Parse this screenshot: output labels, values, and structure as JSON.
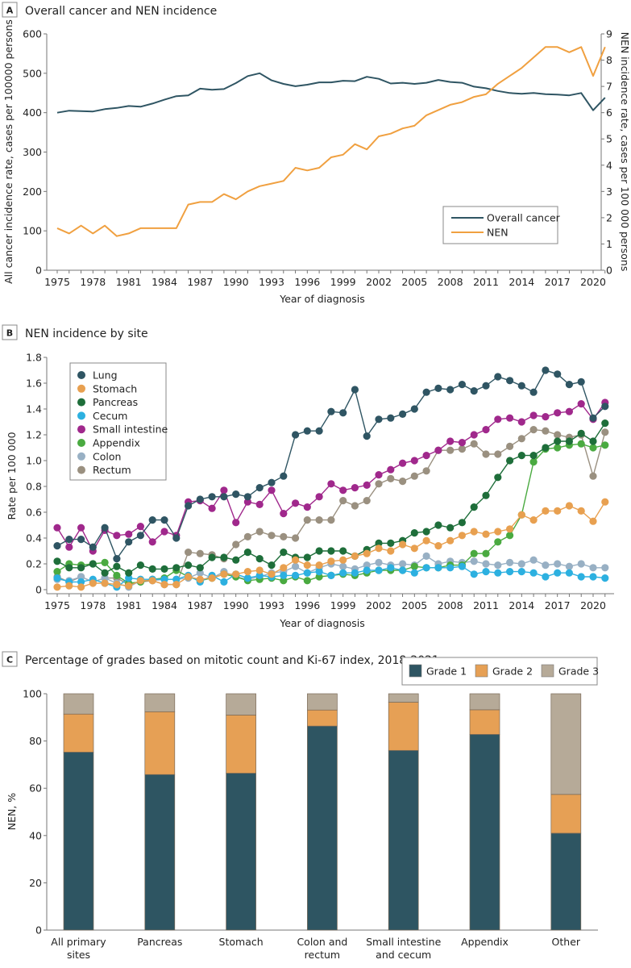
{
  "chart_data": [
    {
      "panel": "A",
      "type": "line",
      "title": "Overall cancer and NEN incidence",
      "xlabel": "Year of diagnosis",
      "ylabel": "All cancer incidence rate, cases per 100000 persons",
      "y2label": "NEN incidence rate, cases per 100 000 persons",
      "xlim": [
        1975,
        2021
      ],
      "ylim": [
        0,
        600
      ],
      "y2lim": [
        0,
        9
      ],
      "x_ticks": [
        "1975",
        "1978",
        "1981",
        "1984",
        "1987",
        "1990",
        "1993",
        "1996",
        "1999",
        "2002",
        "2005",
        "2008",
        "2011",
        "2014",
        "2017",
        "2020"
      ],
      "y_ticks": [
        "0",
        "100",
        "200",
        "300",
        "400",
        "500",
        "600"
      ],
      "y2_ticks": [
        "0",
        "1",
        "2",
        "3",
        "4",
        "5",
        "6",
        "7",
        "8",
        "9"
      ],
      "legend_position": "bottom-right",
      "x": [
        1975,
        1976,
        1977,
        1978,
        1979,
        1980,
        1981,
        1982,
        1983,
        1984,
        1985,
        1986,
        1987,
        1988,
        1989,
        1990,
        1991,
        1992,
        1993,
        1994,
        1995,
        1996,
        1997,
        1998,
        1999,
        2000,
        2001,
        2002,
        2003,
        2004,
        2005,
        2006,
        2007,
        2008,
        2009,
        2010,
        2011,
        2012,
        2013,
        2014,
        2015,
        2016,
        2017,
        2018,
        2019,
        2020,
        2021
      ],
      "series": [
        {
          "name": "Overall cancer",
          "axis": "left",
          "color": "#2f5563",
          "values": [
            400,
            405,
            404,
            403,
            409,
            412,
            417,
            415,
            423,
            433,
            442,
            444,
            461,
            458,
            460,
            475,
            493,
            500,
            482,
            473,
            467,
            471,
            477,
            477,
            481,
            480,
            491,
            486,
            474,
            476,
            473,
            476,
            483,
            478,
            476,
            466,
            462,
            455,
            450,
            448,
            450,
            447,
            446,
            444,
            450,
            406,
            438
          ]
        },
        {
          "name": "NEN",
          "axis": "right",
          "color": "#f0a040",
          "values": [
            1.6,
            1.4,
            1.7,
            1.4,
            1.7,
            1.3,
            1.4,
            1.6,
            1.6,
            1.6,
            1.6,
            2.5,
            2.6,
            2.6,
            2.9,
            2.7,
            3.0,
            3.2,
            3.3,
            3.4,
            3.9,
            3.8,
            3.9,
            4.3,
            4.4,
            4.8,
            4.6,
            5.1,
            5.2,
            5.4,
            5.5,
            5.9,
            6.1,
            6.3,
            6.4,
            6.6,
            6.7,
            7.1,
            7.4,
            7.7,
            8.1,
            8.5,
            8.5,
            8.3,
            8.5,
            7.4,
            8.5
          ]
        }
      ]
    },
    {
      "panel": "B",
      "type": "line",
      "title": "NEN incidence by site",
      "xlabel": "Year of diagnosis",
      "ylabel": "Rate per 100 000",
      "xlim": [
        1975,
        2021
      ],
      "ylim": [
        0,
        1.8
      ],
      "x_ticks": [
        "1975",
        "1978",
        "1981",
        "1984",
        "1987",
        "1990",
        "1993",
        "1996",
        "1999",
        "2002",
        "2005",
        "2008",
        "2011",
        "2014",
        "2017",
        "2020"
      ],
      "y_ticks": [
        "0",
        "0.2",
        "0.4",
        "0.6",
        "0.8",
        "1.0",
        "1.2",
        "1.4",
        "1.6",
        "1.8"
      ],
      "legend_position": "top-left",
      "x": [
        1975,
        1976,
        1977,
        1978,
        1979,
        1980,
        1981,
        1982,
        1983,
        1984,
        1985,
        1986,
        1987,
        1988,
        1989,
        1990,
        1991,
        1992,
        1993,
        1994,
        1995,
        1996,
        1997,
        1998,
        1999,
        2000,
        2001,
        2002,
        2003,
        2004,
        2005,
        2006,
        2007,
        2008,
        2009,
        2010,
        2011,
        2012,
        2013,
        2014,
        2015,
        2016,
        2017,
        2018,
        2019,
        2020,
        2021
      ],
      "series": [
        {
          "name": "Lung",
          "color": "#2f5563",
          "values": [
            0.34,
            0.39,
            0.39,
            0.33,
            0.48,
            0.24,
            0.37,
            0.42,
            0.54,
            0.54,
            0.4,
            0.65,
            0.7,
            0.72,
            0.72,
            0.74,
            0.72,
            0.79,
            0.83,
            0.88,
            1.2,
            1.23,
            1.23,
            1.38,
            1.37,
            1.55,
            1.19,
            1.32,
            1.33,
            1.36,
            1.4,
            1.53,
            1.56,
            1.55,
            1.59,
            1.54,
            1.58,
            1.65,
            1.62,
            1.58,
            1.53,
            1.7,
            1.67,
            1.59,
            1.61,
            1.33,
            1.42
          ]
        },
        {
          "name": "Stomach",
          "color": "#e8a050",
          "values": [
            0.02,
            0.03,
            0.02,
            0.05,
            0.05,
            0.04,
            0.03,
            0.07,
            0.07,
            0.04,
            0.04,
            0.1,
            0.08,
            0.09,
            0.12,
            0.12,
            0.14,
            0.15,
            0.12,
            0.17,
            0.23,
            0.19,
            0.19,
            0.22,
            0.23,
            0.26,
            0.28,
            0.32,
            0.3,
            0.35,
            0.32,
            0.38,
            0.34,
            0.38,
            0.42,
            0.45,
            0.43,
            0.45,
            0.47,
            0.58,
            0.54,
            0.61,
            0.61,
            0.65,
            0.61,
            0.53,
            0.68
          ]
        },
        {
          "name": "Pancreas",
          "color": "#1e6e3a",
          "values": [
            0.22,
            0.17,
            0.17,
            0.2,
            0.13,
            0.18,
            0.13,
            0.19,
            0.16,
            0.16,
            0.17,
            0.19,
            0.17,
            0.25,
            0.25,
            0.23,
            0.29,
            0.24,
            0.19,
            0.29,
            0.25,
            0.25,
            0.3,
            0.3,
            0.3,
            0.26,
            0.31,
            0.36,
            0.36,
            0.38,
            0.44,
            0.45,
            0.5,
            0.48,
            0.52,
            0.64,
            0.73,
            0.87,
            1.0,
            1.04,
            1.04,
            1.1,
            1.15,
            1.15,
            1.21,
            1.15,
            1.29
          ]
        },
        {
          "name": "Cecum",
          "color": "#2cb0e0",
          "values": [
            0.09,
            0.06,
            0.06,
            0.08,
            0.05,
            0.02,
            0.09,
            0.08,
            0.08,
            0.08,
            0.08,
            0.11,
            0.06,
            0.11,
            0.06,
            0.12,
            0.09,
            0.11,
            0.1,
            0.11,
            0.11,
            0.13,
            0.14,
            0.11,
            0.13,
            0.13,
            0.15,
            0.15,
            0.17,
            0.15,
            0.13,
            0.17,
            0.17,
            0.17,
            0.18,
            0.12,
            0.14,
            0.13,
            0.14,
            0.14,
            0.13,
            0.1,
            0.13,
            0.13,
            0.1,
            0.1,
            0.09
          ]
        },
        {
          "name": "Small intestine",
          "color": "#a0288c",
          "values": [
            0.48,
            0.33,
            0.48,
            0.3,
            0.46,
            0.42,
            0.43,
            0.49,
            0.37,
            0.45,
            0.42,
            0.68,
            0.69,
            0.63,
            0.77,
            0.52,
            0.68,
            0.66,
            0.77,
            0.59,
            0.67,
            0.64,
            0.72,
            0.82,
            0.77,
            0.79,
            0.81,
            0.89,
            0.93,
            0.98,
            1.0,
            1.04,
            1.08,
            1.15,
            1.14,
            1.2,
            1.24,
            1.32,
            1.33,
            1.3,
            1.35,
            1.34,
            1.37,
            1.38,
            1.44,
            1.32,
            1.45
          ]
        },
        {
          "name": "Appendix",
          "color": "#4aaa40",
          "values": [
            0.14,
            0.2,
            0.19,
            0.2,
            0.21,
            0.11,
            0.05,
            0.06,
            0.08,
            0.09,
            0.15,
            0.1,
            0.07,
            0.09,
            0.12,
            0.1,
            0.07,
            0.08,
            0.09,
            0.07,
            0.1,
            0.07,
            0.1,
            0.11,
            0.12,
            0.11,
            0.13,
            0.15,
            0.15,
            0.15,
            0.18,
            0.17,
            0.17,
            0.19,
            0.19,
            0.28,
            0.28,
            0.37,
            0.42,
            0.58,
            0.99,
            1.09,
            1.1,
            1.12,
            1.13,
            1.1,
            1.12
          ]
        },
        {
          "name": "Colon",
          "color": "#98b0c4",
          "values": [
            0.08,
            0.07,
            0.1,
            0.06,
            0.09,
            0.05,
            0.02,
            0.07,
            0.07,
            0.08,
            0.08,
            0.09,
            0.13,
            0.09,
            0.14,
            0.1,
            0.08,
            0.1,
            0.13,
            0.14,
            0.18,
            0.13,
            0.17,
            0.2,
            0.18,
            0.16,
            0.19,
            0.21,
            0.19,
            0.2,
            0.19,
            0.26,
            0.2,
            0.22,
            0.21,
            0.22,
            0.2,
            0.19,
            0.21,
            0.2,
            0.23,
            0.19,
            0.2,
            0.18,
            0.2,
            0.17,
            0.17
          ]
        },
        {
          "name": "Rectum",
          "color": "#9a9080",
          "values": [
            0.1,
            0.06,
            0.1,
            0.06,
            0.09,
            0.09,
            0.04,
            0.06,
            0.07,
            0.04,
            0.04,
            0.29,
            0.28,
            0.27,
            0.24,
            0.35,
            0.41,
            0.45,
            0.42,
            0.41,
            0.4,
            0.54,
            0.54,
            0.54,
            0.69,
            0.65,
            0.69,
            0.82,
            0.86,
            0.84,
            0.88,
            0.92,
            1.08,
            1.08,
            1.09,
            1.13,
            1.05,
            1.05,
            1.11,
            1.17,
            1.24,
            1.23,
            1.2,
            1.18,
            1.2,
            0.88,
            1.22
          ]
        }
      ]
    },
    {
      "panel": "C",
      "type": "bar",
      "stacked": true,
      "title": "Percentage of grades based on mitotic count and Ki-67 index, 2018-2021",
      "xlabel": "",
      "ylabel": "NEN, %",
      "ylim": [
        0,
        100
      ],
      "y_ticks": [
        "0",
        "20",
        "40",
        "60",
        "80",
        "100"
      ],
      "legend_position": "top-right",
      "categories": [
        [
          "All primary",
          "sites"
        ],
        [
          "Pancreas"
        ],
        [
          "Stomach"
        ],
        [
          "Colon and",
          "rectum"
        ],
        [
          "Small intestine",
          "and cecum"
        ],
        [
          "Appendix"
        ],
        [
          "Other"
        ]
      ],
      "series": [
        {
          "name": "Grade 1",
          "color": "#2e5562",
          "values": [
            75.3,
            65.8,
            66.4,
            86.3,
            76.0,
            82.8,
            41.0
          ]
        },
        {
          "name": "Grade 2",
          "color": "#e6a055",
          "values": [
            16.1,
            26.6,
            24.6,
            6.8,
            20.4,
            10.4,
            16.4
          ]
        },
        {
          "name": "Grade 3",
          "color": "#b6aa98",
          "values": [
            8.6,
            7.6,
            9.0,
            6.9,
            3.6,
            6.8,
            42.6
          ]
        }
      ]
    }
  ],
  "panels": {
    "A": {
      "letter": "A",
      "title": "Overall cancer and NEN incidence"
    },
    "B": {
      "letter": "B",
      "title": "NEN incidence by site"
    },
    "C": {
      "letter": "C",
      "title": "Percentage of grades based on mitotic count and Ki-67 index, 2018-2021"
    }
  }
}
